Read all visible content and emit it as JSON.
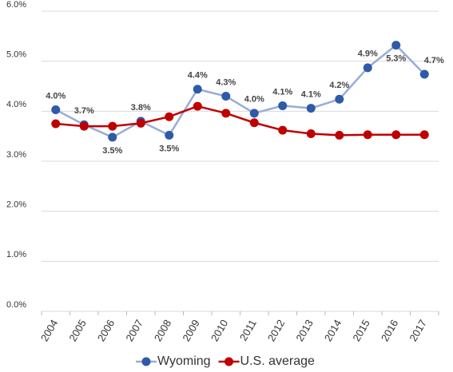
{
  "chart_data": {
    "type": "line",
    "categories": [
      "2004",
      "2005",
      "2006",
      "2007",
      "2008",
      "2009",
      "2010",
      "2011",
      "2012",
      "2013",
      "2014",
      "2015",
      "2016",
      "2017"
    ],
    "series": [
      {
        "name": "Wyoming",
        "color": "#2e5aa8",
        "line_color": "#98acd8",
        "values": [
          4.03,
          3.73,
          3.48,
          3.8,
          3.52,
          4.44,
          4.3,
          3.96,
          4.11,
          4.06,
          4.24,
          4.87,
          5.32,
          4.74
        ],
        "value_labels": [
          "4.0%",
          "3.7%",
          "3.5%",
          "3.8%",
          "3.5%",
          "4.4%",
          "4.3%",
          "4.0%",
          "4.1%",
          "4.1%",
          "4.2%",
          "4.9%",
          "5.3%",
          "4.7%"
        ]
      },
      {
        "name": "U.S. average",
        "color": "#c00000",
        "line_color": "#c00000",
        "values": [
          3.75,
          3.7,
          3.7,
          3.76,
          3.89,
          4.1,
          3.96,
          3.77,
          3.62,
          3.55,
          3.52,
          3.53,
          3.53,
          3.53
        ]
      }
    ],
    "ylim": [
      0,
      6
    ],
    "yticks": [
      {
        "value": 0,
        "label": "0.0%"
      },
      {
        "value": 1,
        "label": "1.0%"
      },
      {
        "value": 2,
        "label": "2.0%"
      },
      {
        "value": 3,
        "label": "3.0%"
      },
      {
        "value": 4,
        "label": "4.0%"
      },
      {
        "value": 5,
        "label": "5.0%"
      },
      {
        "value": 6,
        "label": "6.0%"
      }
    ],
    "grid": true,
    "legend": "bottom"
  }
}
